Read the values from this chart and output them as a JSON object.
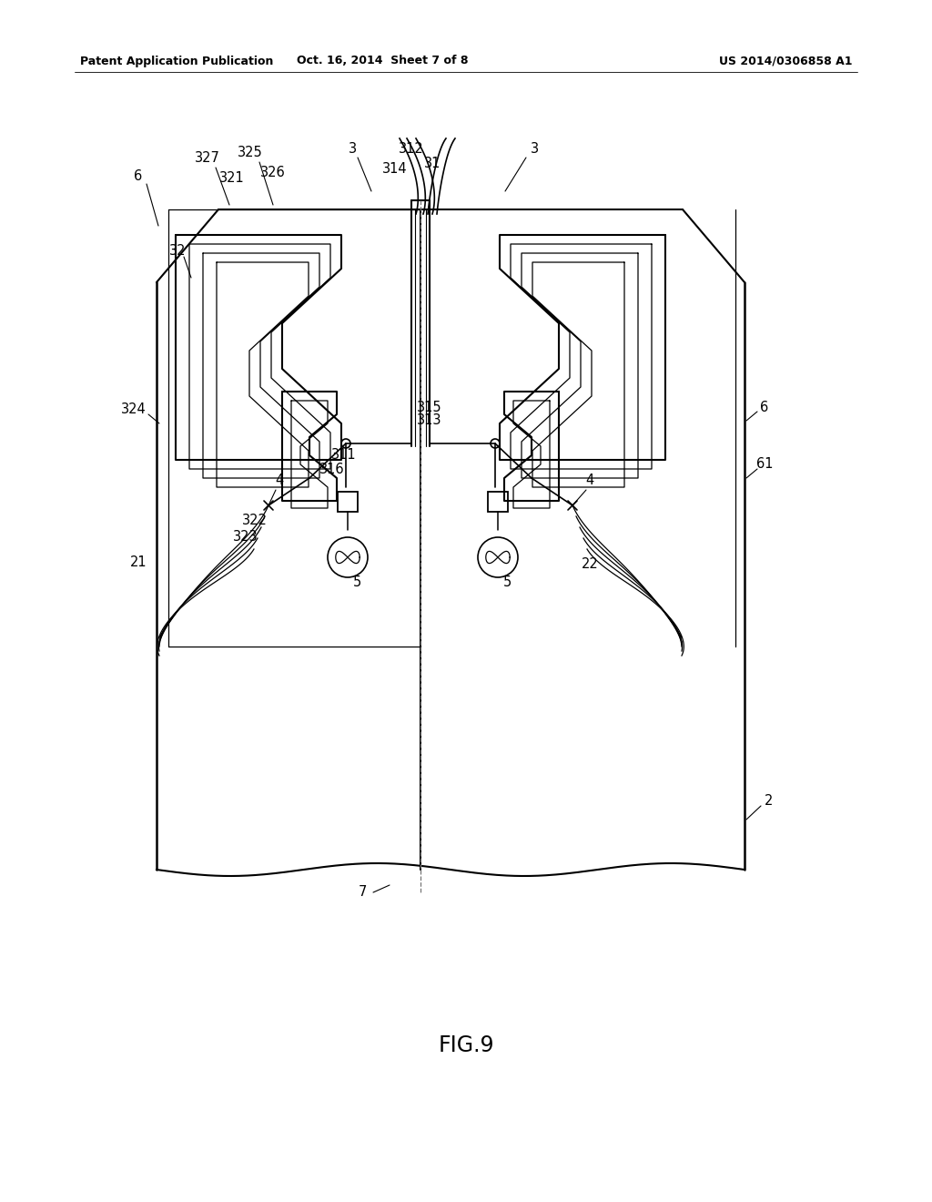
{
  "background_color": "#ffffff",
  "header_left": "Patent Application Publication",
  "header_mid": "Oct. 16, 2014  Sheet 7 of 8",
  "header_right": "US 2014/0306858 A1",
  "fig_label": "FIG.9",
  "line_color": "#000000",
  "line_width": 1.5,
  "thin_line": 0.9
}
